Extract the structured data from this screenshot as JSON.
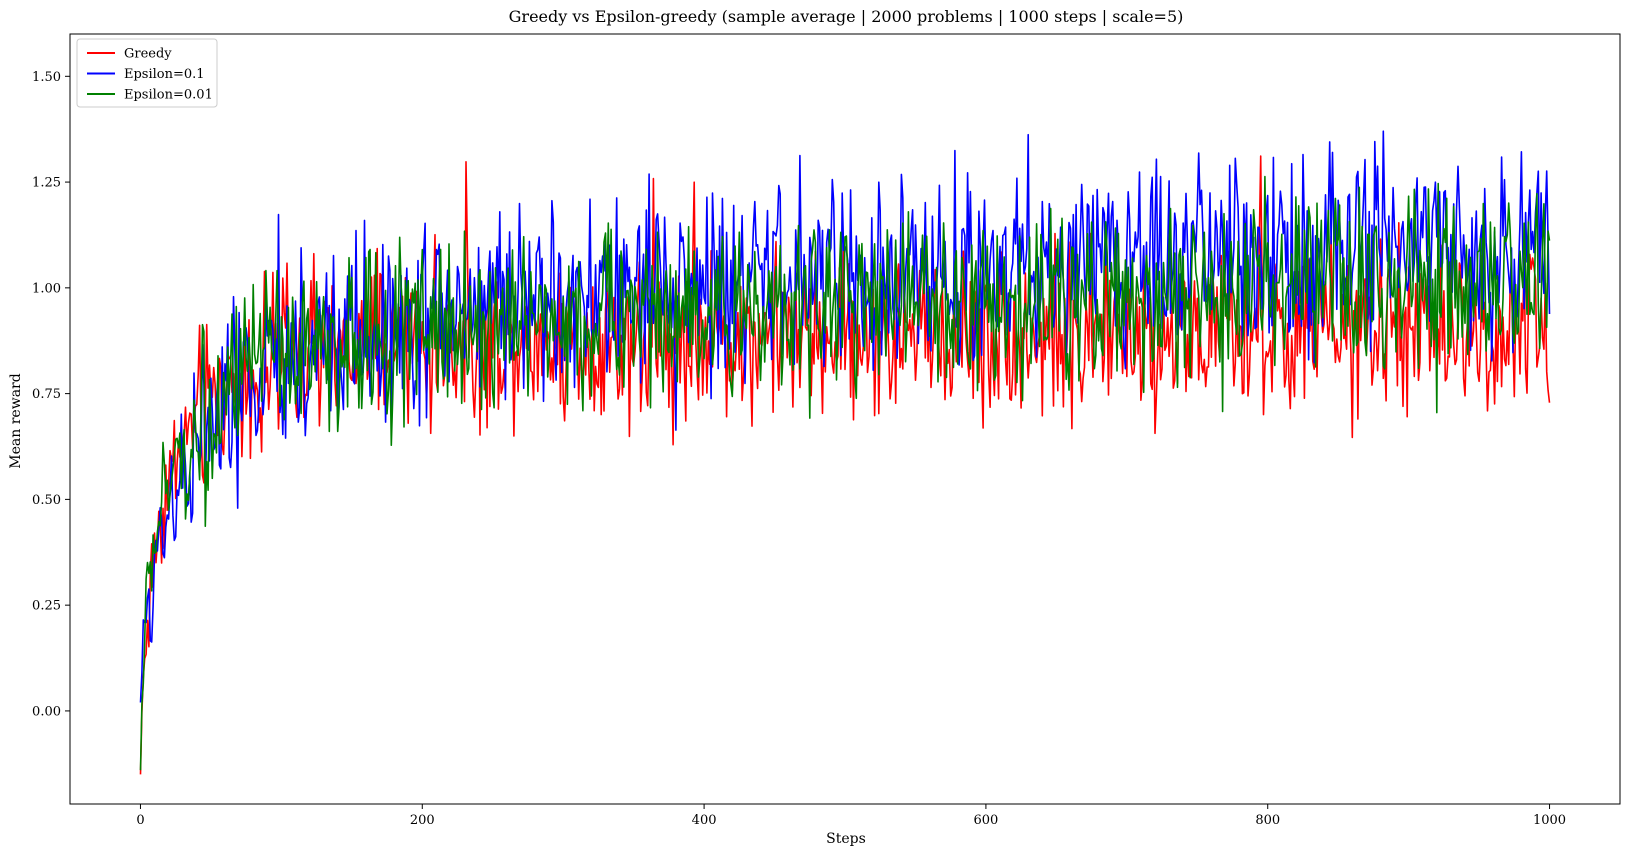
{
  "chart_data": {
    "type": "line",
    "title": "Greedy vs Epsilon-greedy (sample average | 2000 problems | 1000 steps | scale=5)",
    "xlabel": "Steps",
    "ylabel": "Mean reward",
    "xlim": [
      -50,
      1050
    ],
    "ylim": [
      -0.22,
      1.6
    ],
    "xticks": [
      0,
      200,
      400,
      600,
      800,
      1000
    ],
    "xtick_labels": [
      "0",
      "200",
      "400",
      "600",
      "800",
      "1000"
    ],
    "yticks": [
      0.0,
      0.25,
      0.5,
      0.75,
      1.0,
      1.25,
      1.5
    ],
    "ytick_labels": [
      "0.00",
      "0.25",
      "0.50",
      "0.75",
      "1.00",
      "1.25",
      "1.50"
    ],
    "grid": false,
    "legend_position": "top-left",
    "x": [
      0,
      2,
      5,
      10,
      15,
      20,
      30,
      40,
      50,
      60,
      75,
      100,
      125,
      150,
      175,
      200,
      250,
      300,
      350,
      400,
      450,
      500,
      550,
      600,
      650,
      700,
      750,
      800,
      850,
      900,
      950,
      1000
    ],
    "series": [
      {
        "name": "Greedy",
        "color": "#ff0000",
        "values": [
          -0.15,
          0.1,
          0.2,
          0.38,
          0.47,
          0.55,
          0.63,
          0.69,
          0.73,
          0.76,
          0.79,
          0.82,
          0.84,
          0.855,
          0.865,
          0.87,
          0.875,
          0.88,
          0.882,
          0.885,
          0.887,
          0.888,
          0.89,
          0.89,
          0.89,
          0.89,
          0.89,
          0.89,
          0.89,
          0.89,
          0.89,
          0.89
        ],
        "noise_amplitude": 0.095
      },
      {
        "name": "Epsilon=0.1",
        "color": "#0000ff",
        "values": [
          0.02,
          0.12,
          0.22,
          0.36,
          0.44,
          0.5,
          0.58,
          0.64,
          0.68,
          0.72,
          0.77,
          0.82,
          0.86,
          0.89,
          0.91,
          0.93,
          0.96,
          0.98,
          1.0,
          1.01,
          1.02,
          1.03,
          1.04,
          1.05,
          1.06,
          1.07,
          1.08,
          1.09,
          1.095,
          1.1,
          1.1,
          1.1
        ],
        "noise_amplitude": 0.11
      },
      {
        "name": "Epsilon=0.01",
        "color": "#008000",
        "values": [
          -0.14,
          0.15,
          0.28,
          0.4,
          0.48,
          0.54,
          0.61,
          0.67,
          0.71,
          0.74,
          0.78,
          0.82,
          0.85,
          0.87,
          0.89,
          0.9,
          0.915,
          0.925,
          0.935,
          0.945,
          0.955,
          0.96,
          0.965,
          0.97,
          0.975,
          0.98,
          0.985,
          0.99,
          0.995,
          1.0,
          1.0,
          1.0
        ],
        "noise_amplitude": 0.1
      }
    ]
  }
}
